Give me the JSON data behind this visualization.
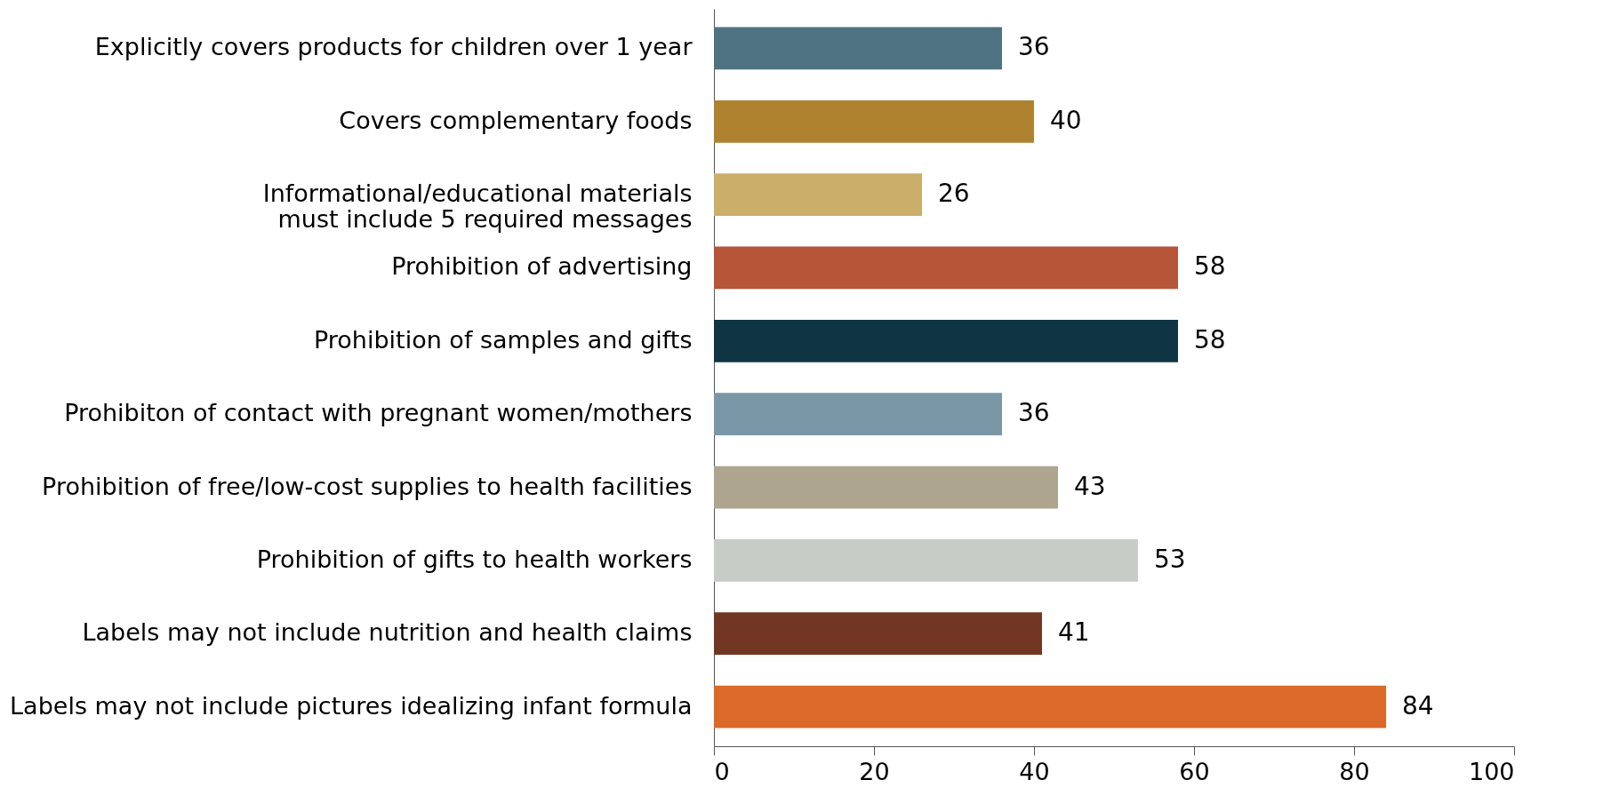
{
  "chart_data": {
    "type": "bar",
    "orientation": "horizontal",
    "categories": [
      "Explicitly covers products for children over 1 year",
      "Covers complementary foods",
      "Informational/educational materials\nmust include 5 required messages",
      "Prohibition of advertising",
      "Prohibition of samples and gifts",
      "Prohibiton of contact with pregnant women/mothers",
      "Prohibition of free/low-cost supplies to health facilities",
      "Prohibition of gifts to health workers",
      "Labels may not include nutrition and health claims",
      "Labels may not include pictures idealizing infant formula"
    ],
    "values": [
      36,
      40,
      26,
      58,
      58,
      36,
      43,
      53,
      41,
      84
    ],
    "colors": [
      "#4f7282",
      "#ae822f",
      "#cbae6a",
      "#b65538",
      "#0f3544",
      "#7997a6",
      "#aea58f",
      "#c7ccc7",
      "#723724",
      "#db6a2a"
    ],
    "xlim": [
      0,
      100
    ],
    "xticks": [
      0,
      20,
      40,
      60,
      80,
      100
    ],
    "data_labels": true,
    "grid": false
  }
}
